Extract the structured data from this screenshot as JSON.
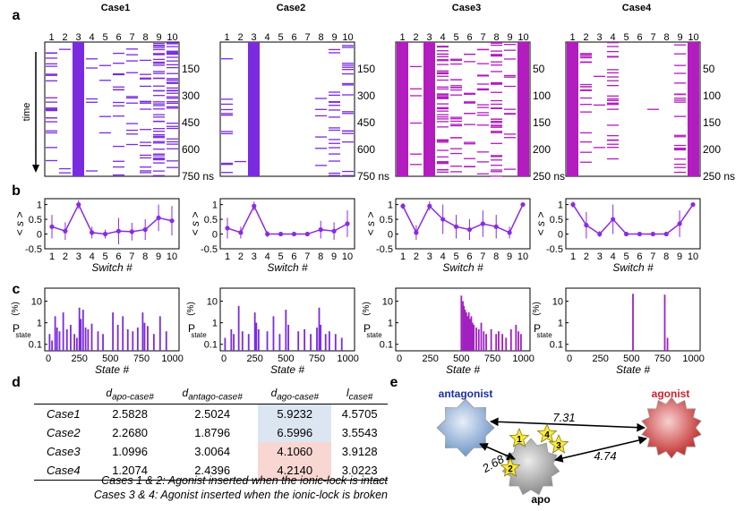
{
  "panel_labels": [
    "a",
    "b",
    "c",
    "d",
    "e"
  ],
  "case_titles": [
    "Case1",
    "Case2",
    "Case3",
    "Case4"
  ],
  "time_label": "time",
  "switch_numbers": [
    "1",
    "2",
    "3",
    "4",
    "5",
    "6",
    "7",
    "8",
    "9",
    "10"
  ],
  "colors": {
    "purple_a": "#7b2bdf",
    "magenta": "#b31cbf",
    "line": "#8a2be2",
    "table_blue": "#dce6f2",
    "table_pink": "#f8d7d3"
  },
  "chart_data": [
    {
      "type": "heatmap",
      "panel": "a",
      "xlabel": "switch #",
      "ylabel": "time",
      "cases": [
        {
          "title": "Case1",
          "yticks": [
            "150",
            "300",
            "450",
            "600",
            "750 ns"
          ],
          "ymax": 750,
          "tmax": 750,
          "color": "#7b2bdf",
          "occupancy": [
            0.35,
            0.05,
            1.0,
            0.08,
            0.06,
            0.25,
            0.18,
            0.3,
            0.75,
            0.6
          ]
        },
        {
          "title": "Case2",
          "yticks": [
            "150",
            "300",
            "450",
            "600",
            "750 ns"
          ],
          "ymax": 750,
          "tmax": 750,
          "color": "#7b2bdf",
          "occupancy": [
            0.2,
            0.02,
            0.95,
            0.0,
            0.0,
            0.0,
            0.0,
            0.1,
            0.3,
            0.3
          ]
        },
        {
          "title": "Case3",
          "yticks": [
            "50",
            "100",
            "150",
            "200",
            "250 ns"
          ],
          "ymax": 250,
          "tmax": 250,
          "color": "#b31cbf",
          "occupancy": [
            0.95,
            0.1,
            1.0,
            0.75,
            0.35,
            0.25,
            0.3,
            0.6,
            0.2,
            1.0
          ]
        },
        {
          "title": "Case4",
          "yticks": [
            "50",
            "100",
            "150",
            "200",
            "250 ns"
          ],
          "ymax": 250,
          "tmax": 250,
          "color": "#b31cbf",
          "occupancy": [
            1.0,
            0.3,
            0.05,
            0.4,
            0.0,
            0.0,
            0.02,
            0.0,
            0.35,
            1.0
          ]
        }
      ]
    },
    {
      "type": "line",
      "panel": "b",
      "xlabel": "Switch #",
      "ylabel": "< s >",
      "ylim": [
        -0.5,
        1.2
      ],
      "yticks": [
        "1",
        "0.5",
        "0",
        "-0.5"
      ],
      "x": [
        1,
        2,
        3,
        4,
        5,
        6,
        7,
        8,
        9,
        10
      ],
      "series": [
        {
          "name": "Case1",
          "values": [
            0.25,
            0.1,
            1.0,
            0.05,
            0.0,
            0.1,
            0.08,
            0.15,
            0.55,
            0.45
          ],
          "err": [
            0.4,
            0.3,
            0.15,
            0.2,
            0.15,
            0.45,
            0.3,
            0.35,
            0.45,
            0.5
          ]
        },
        {
          "name": "Case2",
          "values": [
            0.2,
            0.05,
            0.95,
            0.0,
            0.0,
            0.0,
            0.0,
            0.15,
            0.1,
            0.35
          ],
          "err": [
            0.35,
            0.2,
            0.15,
            0.1,
            0.05,
            0.05,
            0.05,
            0.3,
            0.3,
            0.45
          ]
        },
        {
          "name": "Case3",
          "values": [
            0.95,
            0.05,
            0.95,
            0.5,
            0.25,
            0.15,
            0.35,
            0.25,
            0.05,
            1.0
          ],
          "err": [
            0.1,
            0.25,
            0.15,
            0.5,
            0.4,
            0.35,
            0.45,
            0.4,
            0.2,
            0.05
          ]
        },
        {
          "name": "Case4",
          "values": [
            1.0,
            0.3,
            0.0,
            0.5,
            0.0,
            0.0,
            0.0,
            0.0,
            0.35,
            1.0
          ],
          "err": [
            0.1,
            0.45,
            0.1,
            0.5,
            0.05,
            0.05,
            0.05,
            0.05,
            0.45,
            0.05
          ]
        }
      ]
    },
    {
      "type": "bar",
      "panel": "c",
      "xlabel": "State #",
      "ylabel": "P state (%)",
      "xticks": [
        "0",
        "250",
        "500",
        "750",
        "1000"
      ],
      "yticks": [
        "10",
        "1",
        "0.1"
      ],
      "xlim": [
        0,
        1024
      ],
      "ylim_log": [
        0.05,
        40
      ],
      "series": [
        {
          "name": "Case1",
          "states": [
            10,
            30,
            55,
            70,
            90,
            120,
            150,
            180,
            210,
            230,
            250,
            262,
            280,
            300,
            320,
            350,
            400,
            440,
            520,
            560,
            600,
            640,
            680,
            720,
            760,
            775,
            800,
            850,
            900,
            950
          ],
          "values": [
            0.3,
            0.15,
            2,
            0.6,
            0.4,
            3,
            0.5,
            0.8,
            0.3,
            0.2,
            5,
            1.5,
            4,
            0.6,
            0.5,
            0.9,
            0.4,
            0.3,
            3,
            0.8,
            2,
            0.5,
            0.4,
            0.6,
            3,
            1,
            0.7,
            0.3,
            2,
            0.4
          ]
        },
        {
          "name": "Case2",
          "states": [
            10,
            60,
            80,
            120,
            150,
            200,
            250,
            262,
            280,
            350,
            400,
            450,
            500,
            520,
            600,
            650,
            700,
            750,
            768,
            780,
            820,
            850,
            900,
            950
          ],
          "values": [
            0.2,
            0.5,
            0.3,
            6,
            0.4,
            0.3,
            3,
            1,
            0.5,
            0.4,
            2,
            0.3,
            4,
            0.8,
            0.4,
            0.5,
            0.3,
            0.6,
            5,
            0.8,
            0.3,
            0.4,
            0.3,
            0.2
          ]
        },
        {
          "name": "Case3",
          "states": [
            500,
            512,
            520,
            530,
            540,
            550,
            560,
            570,
            580,
            590,
            600,
            620,
            640,
            660,
            680,
            700,
            740,
            780,
            800,
            830,
            860,
            900,
            940,
            960,
            980
          ],
          "values": [
            18,
            10,
            6,
            4,
            3,
            2,
            3,
            1.5,
            2,
            1,
            0.8,
            0.6,
            0.5,
            1,
            0.4,
            0.3,
            0.5,
            0.3,
            0.4,
            0.3,
            0.2,
            0.5,
            0.8,
            0.4,
            0.3
          ]
        },
        {
          "name": "Case4",
          "states": [
            512,
            768,
            790
          ],
          "values": [
            22,
            20,
            0.2
          ]
        }
      ]
    }
  ],
  "table": {
    "headers": [
      "d",
      "apo-case#",
      "d",
      "antago-case#",
      "d",
      "ago-case#",
      "l",
      "case#"
    ],
    "rows": [
      {
        "case": "Case1",
        "d_apo": "2.5828",
        "d_antago": "2.5024",
        "d_ago": "5.9232",
        "l": "4.5705"
      },
      {
        "case": "Case2",
        "d_apo": "2.2680",
        "d_antago": "1.8796",
        "d_ago": "6.5996",
        "l": "3.5543"
      },
      {
        "case": "Case3",
        "d_apo": "1.0996",
        "d_antago": "3.0064",
        "d_ago": "4.1060",
        "l": "3.9128"
      },
      {
        "case": "Case4",
        "d_apo": "1.2074",
        "d_antago": "2.4396",
        "d_ago": "4.2140",
        "l": "3.0223"
      }
    ],
    "note1": "Cases 1 & 2: Agonist inserted when the ionic-lock is intact",
    "note2": "Cases 3 & 4: Agonist inserted when the ionic-lock is broken"
  },
  "diagram": {
    "antagonist": "antagonist",
    "agonist": "agonist",
    "apo": "apo",
    "dist_antago_ago": "7.31",
    "dist_apo_antago": "2.68",
    "dist_apo_ago": "4.74",
    "stars": [
      "1",
      "2",
      "3",
      "4"
    ],
    "antagonist_color": "#1a2fa0",
    "agonist_color": "#d1202a"
  }
}
